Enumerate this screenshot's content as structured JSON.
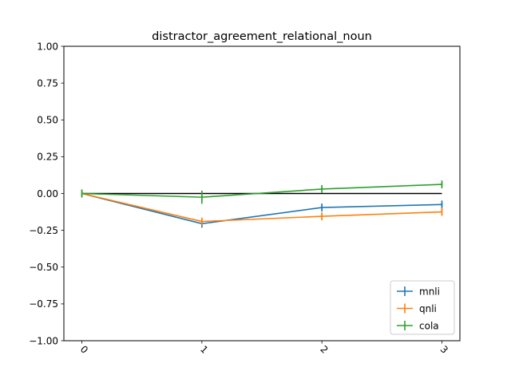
{
  "chart_data": {
    "type": "line",
    "title": "distractor_agreement_relational_noun",
    "xlabel": "",
    "ylabel": "",
    "x": [
      0,
      1,
      2,
      3
    ],
    "x_tick_labels": [
      "0",
      "1",
      "2",
      "3"
    ],
    "x_tick_rotation": "45 degrees",
    "xlim": [
      -0.15,
      3.15
    ],
    "ylim": [
      -1.0,
      1.0
    ],
    "y_ticks": [
      -1.0,
      -0.75,
      -0.5,
      -0.25,
      0.0,
      0.25,
      0.5,
      0.75,
      1.0
    ],
    "y_tick_labels": [
      "−1.00",
      "−0.75",
      "−0.50",
      "−0.25",
      "0.00",
      "0.25",
      "0.50",
      "0.75",
      "1.00"
    ],
    "grid": false,
    "legend_position": "lower-right",
    "reference_line": {
      "y": 0.0,
      "color": "#000000"
    },
    "series": [
      {
        "name": "mnli",
        "color": "#1f77b4",
        "values": [
          0.0,
          -0.205,
          -0.095,
          -0.075
        ],
        "errors": [
          0.0,
          0.02,
          0.02,
          0.015
        ]
      },
      {
        "name": "qnli",
        "color": "#ff7f0e",
        "values": [
          0.0,
          -0.19,
          -0.155,
          -0.125
        ],
        "errors": [
          0.0,
          0.02,
          0.02,
          0.02
        ]
      },
      {
        "name": "cola",
        "color": "#2ca02c",
        "values": [
          0.0,
          -0.025,
          0.03,
          0.062
        ],
        "errors": [
          0.0,
          0.045,
          0.02,
          0.015
        ]
      }
    ]
  }
}
